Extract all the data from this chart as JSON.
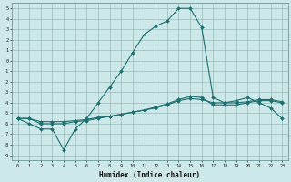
{
  "xlabel": "Humidex (Indice chaleur)",
  "xlim": [
    -0.5,
    23.5
  ],
  "ylim": [
    -9.5,
    5.5
  ],
  "yticks": [
    5,
    4,
    3,
    2,
    1,
    0,
    -1,
    -2,
    -3,
    -4,
    -5,
    -6,
    -7,
    -8,
    -9
  ],
  "xticks": [
    0,
    1,
    2,
    3,
    4,
    5,
    6,
    7,
    8,
    9,
    10,
    11,
    12,
    13,
    14,
    15,
    16,
    17,
    18,
    19,
    20,
    21,
    22,
    23
  ],
  "bg_color": "#cce8e8",
  "grid_color": "#99bbbb",
  "line_color": "#1a7070",
  "s1_x": [
    0,
    1,
    2,
    3,
    4,
    5,
    6,
    7,
    8,
    9,
    10,
    11,
    12,
    13,
    14,
    15,
    16,
    17,
    18,
    19,
    20,
    21,
    22,
    23
  ],
  "s1_y": [
    -5.5,
    -6.0,
    -6.5,
    -6.5,
    -8.5,
    -6.5,
    -5.5,
    -4.0,
    -2.5,
    -1.0,
    0.8,
    2.5,
    3.3,
    3.8,
    5.0,
    5.0,
    3.2,
    -3.5,
    -4.0,
    -3.8,
    -3.5,
    -4.0,
    -4.5,
    -5.5
  ],
  "s2_x": [
    0,
    1,
    2,
    3,
    4,
    5,
    6,
    7,
    8,
    9,
    10,
    11,
    12,
    13,
    14,
    15,
    16,
    17,
    18,
    19,
    20,
    21,
    22,
    23
  ],
  "s2_y": [
    -5.5,
    -5.5,
    -6.0,
    -6.0,
    -6.0,
    -5.8,
    -5.7,
    -5.5,
    -5.3,
    -5.1,
    -4.9,
    -4.7,
    -4.4,
    -4.1,
    -3.7,
    -3.4,
    -3.5,
    -4.2,
    -4.2,
    -4.2,
    -4.0,
    -3.8,
    -3.8,
    -4.0
  ],
  "s3_x": [
    0,
    1,
    2,
    3,
    4,
    5,
    6,
    7,
    8,
    9,
    10,
    11,
    12,
    13,
    14,
    15,
    16,
    17,
    18,
    19,
    20,
    21,
    22,
    23
  ],
  "s3_y": [
    -5.5,
    -5.5,
    -5.8,
    -5.8,
    -5.8,
    -5.7,
    -5.6,
    -5.4,
    -5.3,
    -5.1,
    -4.9,
    -4.7,
    -4.5,
    -4.2,
    -3.8,
    -3.6,
    -3.7,
    -4.0,
    -4.0,
    -4.0,
    -3.9,
    -3.7,
    -3.7,
    -3.9
  ]
}
